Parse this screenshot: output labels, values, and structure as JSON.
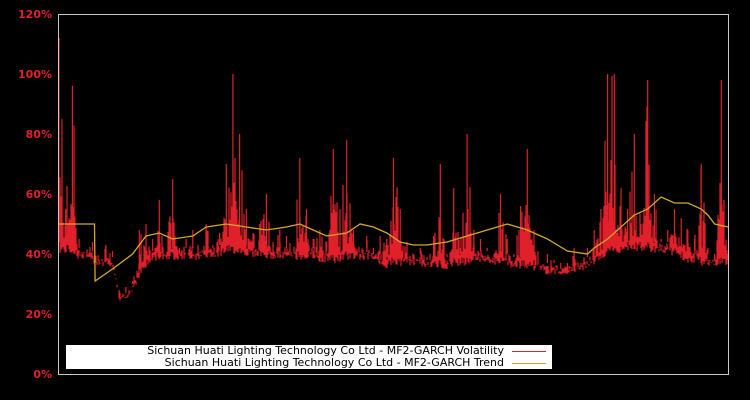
{
  "chart_data": {
    "type": "line",
    "title": "",
    "xlabel": "",
    "ylabel": "",
    "ylim": [
      0,
      120
    ],
    "y_ticks": [
      "0%",
      "20%",
      "40%",
      "60%",
      "80%",
      "100%",
      "120%"
    ],
    "grid": false,
    "legend_position": "lower left",
    "x_index_range": [
      0,
      100
    ],
    "series": [
      {
        "name": "Sichuan Huati Lighting Technology Co Ltd - MF2-GARCH Volatility",
        "color": "#e0202a",
        "x": [
          0,
          1,
          2,
          3,
          4,
          5,
          6,
          7,
          8,
          9,
          10,
          11,
          12,
          13,
          14,
          15,
          16,
          17,
          18,
          19,
          20,
          21,
          22,
          23,
          24,
          25,
          26,
          27,
          28,
          29,
          30,
          31,
          32,
          33,
          34,
          35,
          36,
          37,
          38,
          39,
          40,
          41,
          42,
          43,
          44,
          45,
          46,
          47,
          48,
          49,
          50,
          51,
          52,
          53,
          54,
          55,
          56,
          57,
          58,
          59,
          60,
          61,
          62,
          63,
          64,
          65,
          66,
          67,
          68,
          69,
          70,
          71,
          72,
          73,
          74,
          75,
          76,
          77,
          78,
          79,
          80,
          81,
          82,
          83,
          84,
          85,
          86,
          87,
          88,
          89,
          90,
          91,
          92,
          93,
          94,
          95,
          96,
          97,
          98,
          99,
          100
        ],
        "values": [
          112,
          55,
          96,
          45,
          42,
          44,
          40,
          43,
          41,
          26,
          27,
          30,
          48,
          50,
          45,
          58,
          42,
          65,
          40,
          45,
          48,
          42,
          50,
          42,
          47,
          70,
          100,
          80,
          55,
          47,
          50,
          60,
          44,
          48,
          46,
          42,
          72,
          55,
          45,
          48,
          44,
          75,
          55,
          78,
          48,
          42,
          46,
          40,
          46,
          45,
          72,
          55,
          44,
          40,
          42,
          38,
          46,
          70,
          40,
          62,
          42,
          80,
          48,
          45,
          42,
          40,
          60,
          45,
          40,
          56,
          75,
          48,
          38,
          40,
          38,
          35,
          34,
          42,
          38,
          42,
          48,
          55,
          100,
          100,
          62,
          55,
          80,
          50,
          98,
          60,
          45,
          48,
          55,
          52,
          48,
          45,
          70,
          42,
          38,
          98,
          38
        ],
        "ymin_band": [
          40,
          40,
          40,
          38,
          38,
          37,
          36,
          36,
          35,
          24,
          25,
          27,
          32,
          35,
          37,
          38,
          38,
          38,
          38,
          38,
          38,
          38,
          38,
          39,
          39,
          40,
          40,
          40,
          39,
          39,
          39,
          38,
          38,
          38,
          38,
          38,
          38,
          38,
          38,
          37,
          37,
          37,
          37,
          38,
          38,
          38,
          38,
          38,
          36,
          35,
          36,
          36,
          36,
          36,
          36,
          35,
          35,
          35,
          35,
          36,
          36,
          36,
          37,
          37,
          37,
          36,
          36,
          36,
          35,
          35,
          35,
          34,
          34,
          33,
          33,
          33,
          33,
          34,
          34,
          35,
          36,
          37,
          40,
          40,
          40,
          40,
          41,
          41,
          41,
          40,
          40,
          40,
          39,
          38,
          37,
          37,
          36,
          36,
          36,
          36,
          36
        ]
      },
      {
        "name": "Sichuan Huati Lighting Technology Co Ltd - MF2-GARCH Trend",
        "color": "#d4a72c",
        "x": [
          0,
          5.3,
          5.4,
          8,
          11,
          13,
          15,
          17,
          20,
          22,
          25,
          28,
          31,
          34,
          36,
          38,
          40,
          43,
          45,
          47,
          49,
          51,
          53,
          55,
          58,
          61,
          64,
          67,
          70,
          73,
          76,
          79,
          80,
          82,
          84,
          86,
          88,
          90,
          92,
          94,
          96,
          97,
          98,
          100
        ],
        "values": [
          50,
          50,
          31,
          35,
          40,
          46,
          47,
          45,
          46,
          49,
          50,
          49,
          48,
          49,
          50,
          48,
          46,
          47,
          50,
          49,
          47,
          44,
          43,
          43,
          44,
          46,
          48,
          50,
          48,
          45,
          41,
          40,
          42,
          45,
          49,
          53,
          55,
          59,
          57,
          57,
          55,
          53,
          50,
          49
        ]
      }
    ]
  },
  "legend": {
    "items": [
      {
        "label": "Sichuan Huati Lighting Technology Co Ltd - MF2-GARCH Volatility",
        "color": "#e0202a"
      },
      {
        "label": "Sichuan Huati Lighting Technology Co Ltd - MF2-GARCH Trend",
        "color": "#d4a72c"
      }
    ]
  },
  "axis": {
    "y_labels": [
      "120%",
      "100%",
      "80%",
      "60%",
      "40%",
      "20%",
      "0%"
    ]
  }
}
